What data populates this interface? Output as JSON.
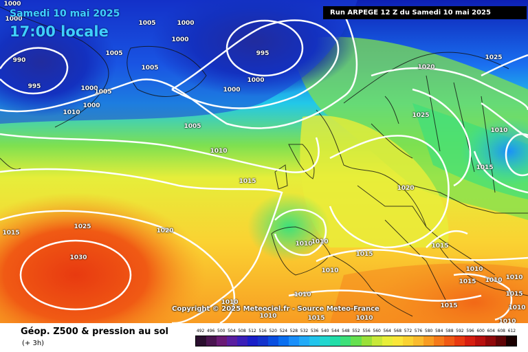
{
  "header": {
    "date": "Samedi 10 mai 2025",
    "time": "17:00 locale",
    "run": "Run ARPEGE 12 Z du Samedi 10 mai 2025"
  },
  "copyright": "Copyright © 2025 Meteociel.fr - Source Meteo-France",
  "footer": {
    "title": "Géop. Z500 & pression au sol",
    "subtitle": "(+ 3h)"
  },
  "isobars": [
    {
      "label": "1000"
    },
    {
      "label": "1000"
    },
    {
      "label": "1005"
    },
    {
      "label": "1000"
    },
    {
      "label": "1000"
    },
    {
      "label": "1005"
    },
    {
      "label": "995"
    },
    {
      "label": "990"
    },
    {
      "label": "1005"
    },
    {
      "label": "995"
    },
    {
      "label": "1000"
    },
    {
      "label": "1005"
    },
    {
      "label": "1000"
    },
    {
      "label": "1000"
    },
    {
      "label": "1010"
    },
    {
      "label": "1000"
    },
    {
      "label": "1005"
    },
    {
      "label": "1010"
    },
    {
      "label": "1015"
    },
    {
      "label": "1020"
    },
    {
      "label": "1025"
    },
    {
      "label": "1025"
    },
    {
      "label": "1010"
    },
    {
      "label": "1015"
    },
    {
      "label": "1020"
    },
    {
      "label": "1025"
    },
    {
      "label": "1020"
    },
    {
      "label": "1015"
    },
    {
      "label": "1030"
    },
    {
      "label": "1010"
    },
    {
      "label": "1010"
    },
    {
      "label": "1015"
    },
    {
      "label": "1015"
    },
    {
      "label": "1010"
    },
    {
      "label": "1010"
    },
    {
      "label": "1010"
    },
    {
      "label": "1010"
    },
    {
      "label": "1015"
    },
    {
      "label": "1010"
    },
    {
      "label": "1015"
    },
    {
      "label": "1015"
    },
    {
      "label": "1010"
    },
    {
      "label": "1010"
    },
    {
      "label": "1015"
    },
    {
      "label": "1010"
    },
    {
      "label": "1010"
    },
    {
      "label": "1010"
    }
  ],
  "scale": {
    "labels": [
      "492",
      "496",
      "500",
      "504",
      "508",
      "512",
      "516",
      "520",
      "524",
      "528",
      "532",
      "536",
      "540",
      "544",
      "548",
      "552",
      "556",
      "560",
      "564",
      "568",
      "572",
      "576",
      "580",
      "584",
      "588",
      "592",
      "596",
      "600",
      "604",
      "608",
      "612"
    ],
    "colors": [
      "#2a0f2e",
      "#4a1550",
      "#6a1b75",
      "#5a1fa0",
      "#3b1fb8",
      "#1a1fc8",
      "#1433cc",
      "#0a4fe0",
      "#0a6ff0",
      "#1a8ffa",
      "#22aaf7",
      "#22c4ec",
      "#22d6cf",
      "#22dda8",
      "#3de07a",
      "#66e050",
      "#9ae03a",
      "#c8e83a",
      "#e8ee3a",
      "#fae63a",
      "#fad232",
      "#fabb2e",
      "#f89c22",
      "#f57a1a",
      "#f05a14",
      "#e83a10",
      "#d61e10",
      "#b8100e",
      "#90080a",
      "#600406",
      "#1a0000"
    ]
  }
}
